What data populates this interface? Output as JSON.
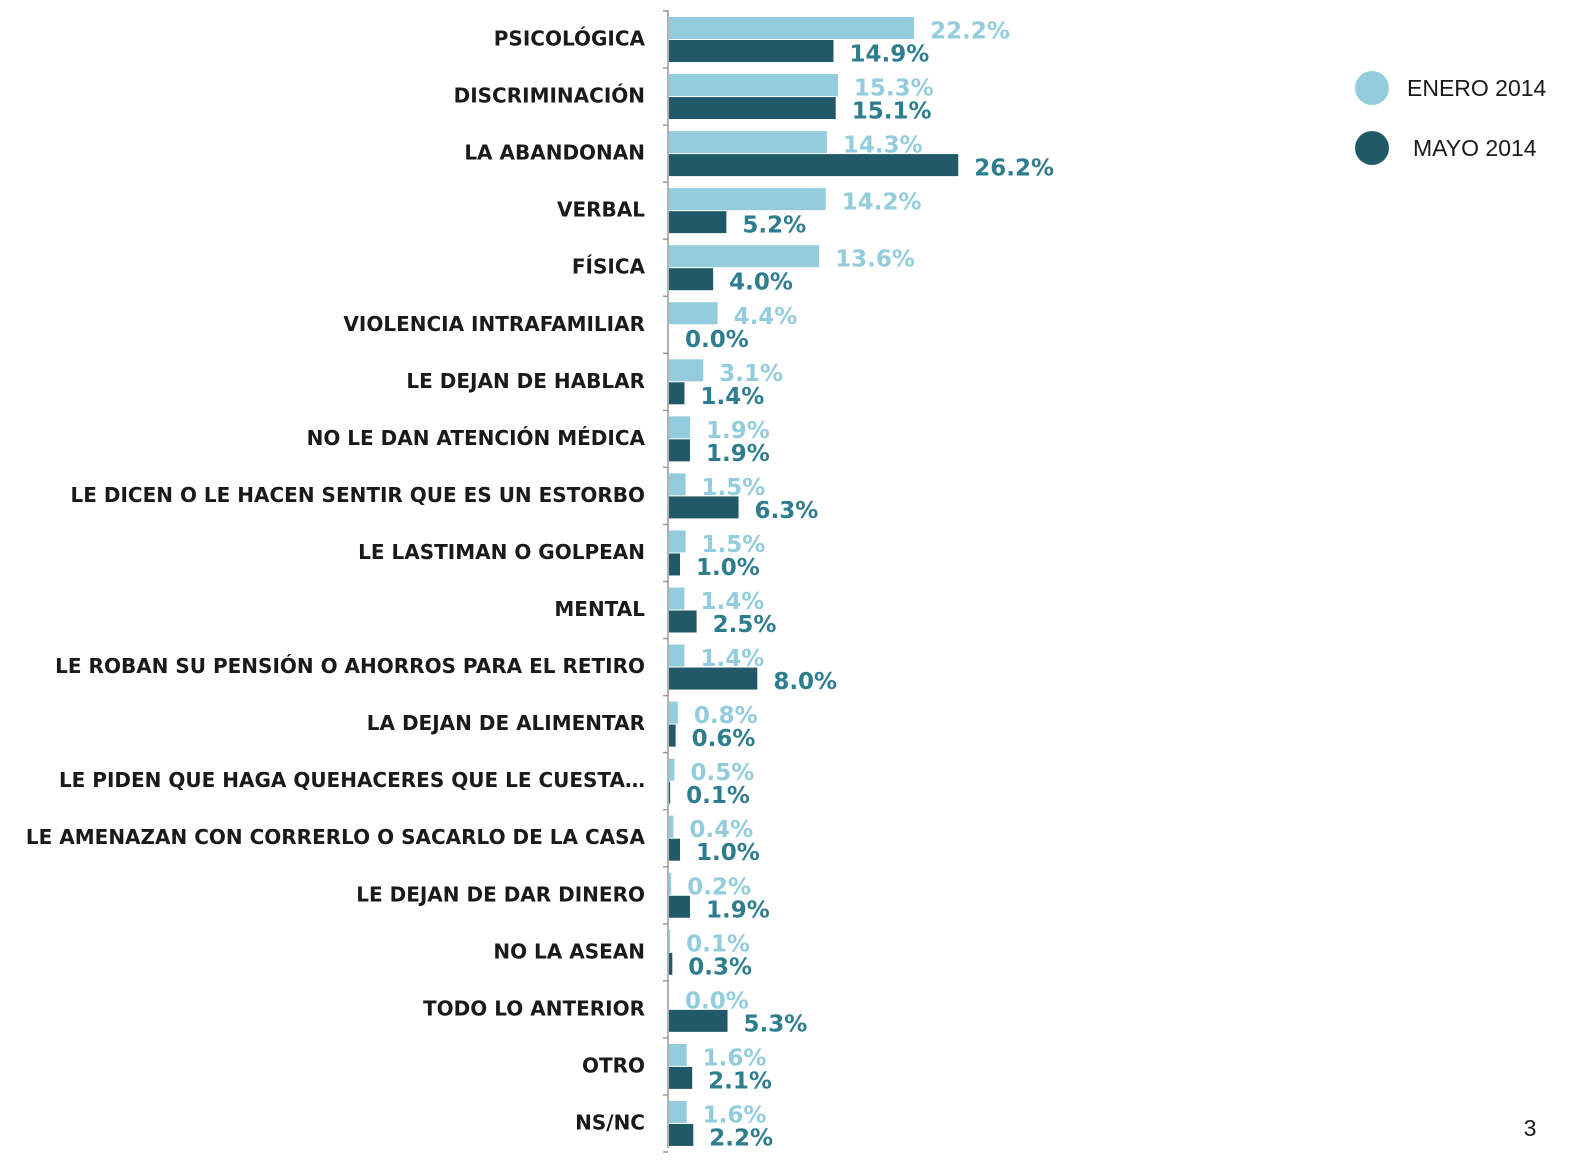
{
  "chart_data": {
    "type": "barh",
    "categories": [
      "PSICOLÓGICA",
      "DISCRIMINACIÓN",
      "LA ABANDONAN",
      "VERBAL",
      "FÍSICA",
      "VIOLENCIA INTRAFAMILIAR",
      "LE DEJAN DE HABLAR",
      "NO LE DAN ATENCIÓN MÉDICA",
      "LE DICEN O LE HACEN SENTIR QUE ES UN ESTORBO",
      "LE LASTIMAN O GOLPEAN",
      "MENTAL",
      "LE ROBAN SU PENSIÓN O AHORROS PARA EL RETIRO",
      "LA DEJAN DE ALIMENTAR",
      "LE PIDEN QUE HAGA QUEHACERES QUE LE CUESTA…",
      "LE AMENAZAN CON CORRERLO O SACARLO DE LA CASA",
      "LE DEJAN DE DAR DINERO",
      "NO LA ASEAN",
      "TODO LO ANTERIOR",
      "OTRO",
      "NS/NC"
    ],
    "series": [
      {
        "name": "ENERO 2014",
        "color": "#93cddd",
        "label_color": "#93cddd",
        "values": [
          22.2,
          15.3,
          14.3,
          14.2,
          13.6,
          4.4,
          3.1,
          1.9,
          1.5,
          1.5,
          1.4,
          1.4,
          0.8,
          0.5,
          0.4,
          0.2,
          0.1,
          0.0,
          1.6,
          1.6
        ],
        "value_labels": [
          "22.2%",
          "15.3%",
          "14.3%",
          "14.2%",
          "13.6%",
          "4.4%",
          "3.1%",
          "1.9%",
          "1.5%",
          "1.5%",
          "1.4%",
          "1.4%",
          "0.8%",
          "0.5%",
          "0.4%",
          "0.2%",
          "0.1%",
          "0.0%",
          "1.6%",
          "1.6%"
        ]
      },
      {
        "name": "MAYO 2014",
        "color": "#215968",
        "label_color": "#2e7d8f",
        "values": [
          14.9,
          15.1,
          26.2,
          5.2,
          4.0,
          0.0,
          1.4,
          1.9,
          6.3,
          1.0,
          2.5,
          8.0,
          0.6,
          0.1,
          1.0,
          1.9,
          0.3,
          5.3,
          2.1,
          2.2
        ],
        "value_labels": [
          "14.9%",
          "15.1%",
          "26.2%",
          "5.2%",
          "4.0%",
          "0.0%",
          "1.4%",
          "1.9%",
          "6.3%",
          "1.0%",
          "2.5%",
          "8.0%",
          "0.6%",
          "0.1%",
          "1.0%",
          "1.9%",
          "0.3%",
          "5.3%",
          "2.1%",
          "2.2%"
        ]
      }
    ]
  },
  "page_number": "3"
}
